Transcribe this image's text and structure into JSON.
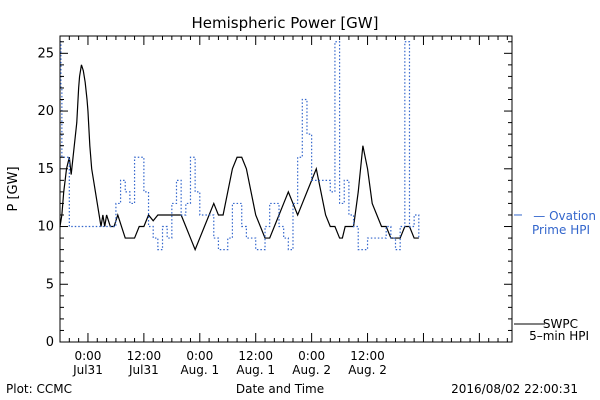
{
  "chart_data": {
    "type": "line",
    "title": "Hemispheric Power [GW]",
    "xlabel": "Date and Time",
    "ylabel": "P [GW]",
    "xlim": [
      -3.0,
      45.5
    ],
    "ylim": [
      0,
      26.5
    ],
    "grid": false,
    "x_unit": "hours since 2016-07-31 00:00 UT",
    "yticks": [
      {
        "value": 0,
        "label": "0"
      },
      {
        "value": 5,
        "label": "5"
      },
      {
        "value": 10,
        "label": "10"
      },
      {
        "value": 15,
        "label": "15"
      },
      {
        "value": 20,
        "label": "20"
      },
      {
        "value": 25,
        "label": "25"
      }
    ],
    "xticks": [
      {
        "value": 0,
        "line1": "0:00",
        "line2": "Jul31"
      },
      {
        "value": 6,
        "line1": "12:00",
        "line2": "Jul31"
      },
      {
        "value": 12,
        "line1": "0:00",
        "line2": "Aug. 1"
      },
      {
        "value": 18,
        "line1": "12:00",
        "line2": "Aug. 1"
      },
      {
        "value": 24,
        "line1": "0:00",
        "line2": "Aug. 2"
      },
      {
        "value": 30,
        "line1": "12:00",
        "line2": "Aug. 2"
      }
    ],
    "series": [
      {
        "name": "SWPC 5-min HPI",
        "legend": [
          "SWPC",
          "5–min HPI"
        ],
        "color": "#000000",
        "style": "solid",
        "x": [
          -3.0,
          -2.8,
          -2.6,
          -2.3,
          -2.0,
          -1.8,
          -1.6,
          -1.2,
          -1.0,
          -0.9,
          -0.7,
          -0.5,
          -0.3,
          -0.1,
          0.0,
          0.2,
          0.4,
          0.6,
          0.8,
          1.0,
          1.2,
          1.4,
          1.6,
          1.8,
          2.0,
          2.4,
          2.8,
          3.2,
          3.6,
          4.0,
          4.5,
          5.0,
          5.5,
          6.0,
          6.5,
          7.0,
          7.5,
          8.0,
          8.5,
          9.0,
          9.5,
          10.0,
          10.5,
          11.0,
          11.5,
          12.0,
          12.5,
          13.0,
          13.5,
          14.0,
          14.5,
          15.0,
          15.5,
          16.0,
          16.5,
          17.0,
          17.5,
          18.0,
          18.5,
          19.0,
          19.5,
          20.0,
          20.5,
          21.0,
          21.5,
          22.0,
          22.5,
          23.0,
          23.5,
          24.0,
          24.5,
          25.0,
          25.5,
          26.0,
          26.5,
          27.0,
          27.3,
          27.6,
          27.9,
          28.2,
          28.5,
          29.0,
          29.5,
          30.0,
          30.5,
          31.0,
          31.5,
          32.0,
          32.5,
          33.0,
          33.5,
          34.0,
          34.5,
          35.0,
          35.5
        ],
        "y": [
          10.0,
          11.0,
          13.0,
          15.0,
          16.0,
          14.5,
          16.0,
          19.0,
          22.0,
          23.0,
          24.0,
          23.5,
          22.5,
          21.0,
          20.0,
          17.0,
          15.0,
          14.0,
          13.0,
          12.0,
          11.0,
          10.0,
          11.0,
          10.0,
          11.0,
          10.0,
          10.0,
          11.0,
          10.0,
          9.0,
          9.0,
          9.0,
          10.0,
          10.0,
          11.0,
          10.5,
          11.0,
          11.0,
          11.0,
          11.0,
          11.0,
          11.0,
          10.0,
          9.0,
          8.0,
          9.0,
          10.0,
          11.0,
          12.0,
          11.0,
          11.0,
          13.0,
          15.0,
          16.0,
          16.0,
          15.0,
          13.0,
          11.0,
          10.0,
          9.0,
          9.0,
          10.0,
          11.0,
          12.0,
          13.0,
          12.0,
          11.0,
          12.0,
          13.0,
          14.0,
          15.0,
          13.0,
          11.0,
          10.0,
          10.0,
          9.0,
          9.0,
          10.0,
          10.0,
          10.0,
          10.0,
          13.0,
          17.0,
          15.0,
          12.0,
          11.0,
          10.0,
          10.0,
          9.0,
          9.0,
          9.0,
          10.0,
          10.0,
          9.0,
          9.0
        ]
      },
      {
        "name": "Ovation Prime HPI",
        "legend": [
          "— Ovation",
          "Prime HPI"
        ],
        "color": "#3366cc",
        "style": "dotted",
        "x": [
          -3.0,
          -2.9,
          -2.8,
          -2.5,
          -2.0,
          -1.5,
          -1.0,
          -0.5,
          0.0,
          0.5,
          1.0,
          1.5,
          2.0,
          2.5,
          3.0,
          3.5,
          4.0,
          4.5,
          5.0,
          5.5,
          6.0,
          6.5,
          7.0,
          7.5,
          8.0,
          8.5,
          9.0,
          9.5,
          10.0,
          10.5,
          11.0,
          11.5,
          12.0,
          12.5,
          13.0,
          13.5,
          14.0,
          14.5,
          15.0,
          15.5,
          16.0,
          16.5,
          17.0,
          17.5,
          18.0,
          18.5,
          19.0,
          19.5,
          20.0,
          20.5,
          21.0,
          21.5,
          22.0,
          22.5,
          23.0,
          23.5,
          24.0,
          24.5,
          25.0,
          25.5,
          26.0,
          26.5,
          27.0,
          27.5,
          28.0,
          28.5,
          29.0,
          29.5,
          30.0,
          30.5,
          31.0,
          31.5,
          32.0,
          32.5,
          33.0,
          33.5,
          34.0,
          34.5,
          35.0,
          35.5
        ],
        "y": [
          26.0,
          22.0,
          16.0,
          16.0,
          10.0,
          10.0,
          10.0,
          10.0,
          10.0,
          10.0,
          10.0,
          10.0,
          10.0,
          10.0,
          12.0,
          14.0,
          13.0,
          12.0,
          16.0,
          16.0,
          13.0,
          10.0,
          9.0,
          8.0,
          10.0,
          9.0,
          12.0,
          14.0,
          11.0,
          12.0,
          16.0,
          13.0,
          11.0,
          11.0,
          11.0,
          9.0,
          8.0,
          8.0,
          9.0,
          12.0,
          12.0,
          10.0,
          9.0,
          9.0,
          8.0,
          8.0,
          10.0,
          12.0,
          12.0,
          10.0,
          9.0,
          8.0,
          12.0,
          16.0,
          21.0,
          18.0,
          14.0,
          14.0,
          14.0,
          14.0,
          13.0,
          26.0,
          12.0,
          14.0,
          11.0,
          10.0,
          8.0,
          8.0,
          9.0,
          9.0,
          9.0,
          9.0,
          10.0,
          9.0,
          8.0,
          10.0,
          26.0,
          10.0,
          11.0,
          9.0
        ]
      }
    ],
    "annotations": {
      "plot_credit": "Plot: CCMC",
      "timestamp": "2016/08/02 22:00:31"
    }
  }
}
